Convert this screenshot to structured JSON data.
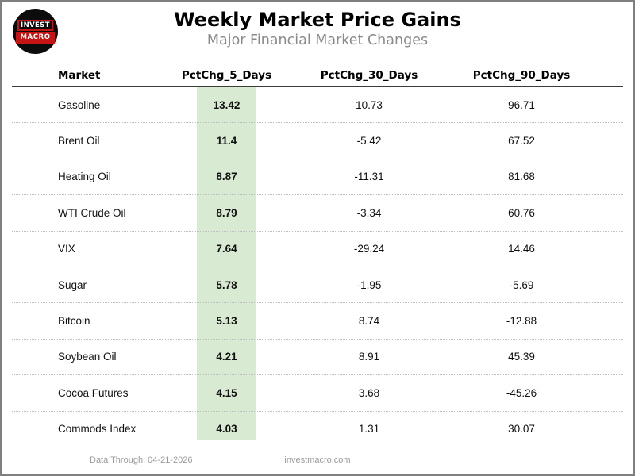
{
  "header": {
    "logo": {
      "line1": "INVEST",
      "line2": "MACRO"
    },
    "title": "Weekly Market Price Gains",
    "subtitle": "Major Financial Market Changes"
  },
  "chart_data": {
    "type": "table",
    "title": "Weekly Market Price Gains",
    "subtitle": "Major Financial Market Changes",
    "columns": [
      "Market",
      "PctChg_5_Days",
      "PctChg_30_Days",
      "PctChg_90_Days"
    ],
    "highlight": {
      "column": "PctChg_5_Days",
      "color": "#d9ead3"
    },
    "rows": [
      {
        "market": "Gasoline",
        "pctchg_5_days": "13.42",
        "pctchg_30_days": "10.73",
        "pctchg_90_days": "96.71"
      },
      {
        "market": "Brent Oil",
        "pctchg_5_days": "11.4",
        "pctchg_30_days": "-5.42",
        "pctchg_90_days": "67.52"
      },
      {
        "market": "Heating Oil",
        "pctchg_5_days": "8.87",
        "pctchg_30_days": "-11.31",
        "pctchg_90_days": "81.68"
      },
      {
        "market": "WTI Crude Oil",
        "pctchg_5_days": "8.79",
        "pctchg_30_days": "-3.34",
        "pctchg_90_days": "60.76"
      },
      {
        "market": "VIX",
        "pctchg_5_days": "7.64",
        "pctchg_30_days": "-29.24",
        "pctchg_90_days": "14.46"
      },
      {
        "market": "Sugar",
        "pctchg_5_days": "5.78",
        "pctchg_30_days": "-1.95",
        "pctchg_90_days": "-5.69"
      },
      {
        "market": "Bitcoin",
        "pctchg_5_days": "5.13",
        "pctchg_30_days": "8.74",
        "pctchg_90_days": "-12.88"
      },
      {
        "market": "Soybean Oil",
        "pctchg_5_days": "4.21",
        "pctchg_30_days": "8.91",
        "pctchg_90_days": "45.39"
      },
      {
        "market": "Cocoa Futures",
        "pctchg_5_days": "4.15",
        "pctchg_30_days": "3.68",
        "pctchg_90_days": "-45.26"
      },
      {
        "market": "Commods Index",
        "pctchg_5_days": "4.03",
        "pctchg_30_days": "1.31",
        "pctchg_90_days": "30.07"
      }
    ]
  },
  "footer": {
    "data_through": "Data Through: 04-21-2026",
    "website": "investmacro.com"
  }
}
